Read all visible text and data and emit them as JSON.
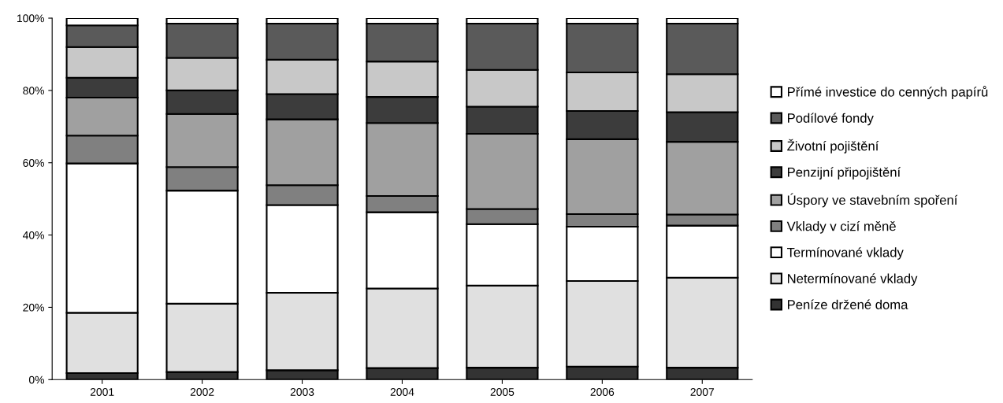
{
  "chart_data": {
    "type": "bar",
    "stacked": true,
    "categories": [
      "2001",
      "2002",
      "2003",
      "2004",
      "2005",
      "2006",
      "2007"
    ],
    "series": [
      {
        "name": "Peníze držené doma",
        "color": "#333333",
        "values": [
          1.8,
          2.1,
          2.6,
          3.2,
          3.3,
          3.6,
          3.3
        ]
      },
      {
        "name": "Netermínované vklady",
        "color": "#e0e0e0",
        "values": [
          16.7,
          18.9,
          21.4,
          22,
          22.7,
          23.7,
          24.9
        ]
      },
      {
        "name": "Termínované vklady",
        "color": "#ffffff",
        "values": [
          41.3,
          31.3,
          24.3,
          21.1,
          17,
          15,
          14.4
        ]
      },
      {
        "name": "Vklady v cizí měně",
        "color": "#808080",
        "values": [
          7.7,
          6.5,
          5.5,
          4.5,
          4.2,
          3.5,
          3.1
        ]
      },
      {
        "name": "Úspory ve stavebním spoření",
        "color": "#a0a0a0",
        "values": [
          10.5,
          14.7,
          18.2,
          20.2,
          20.8,
          20.7,
          20.1
        ]
      },
      {
        "name": "Penzijní připojištění",
        "color": "#3c3c3c",
        "values": [
          5.5,
          6.5,
          7,
          7.2,
          7.5,
          7.8,
          8.2
        ]
      },
      {
        "name": "Životní pojištění",
        "color": "#c8c8c8",
        "values": [
          8.5,
          9,
          9.5,
          9.8,
          10.2,
          10.7,
          10.5
        ]
      },
      {
        "name": "Podílové fondy",
        "color": "#5a5a5a",
        "values": [
          6,
          9.5,
          10,
          10.5,
          12.8,
          13.5,
          14
        ]
      },
      {
        "name": "Přímé investice do cenných papírů",
        "color": "#ffffff",
        "values": [
          2,
          1.5,
          1.5,
          1.5,
          1.5,
          1.5,
          1.5
        ]
      }
    ],
    "ylim": [
      0,
      100
    ],
    "yticks": [
      {
        "value": 0,
        "label": "0%"
      },
      {
        "value": 20,
        "label": "20%"
      },
      {
        "value": 40,
        "label": "40%"
      },
      {
        "value": 60,
        "label": "60%"
      },
      {
        "value": 80,
        "label": "80%"
      },
      {
        "value": 100,
        "label": "100%"
      }
    ],
    "grid": false,
    "legend": "right"
  }
}
